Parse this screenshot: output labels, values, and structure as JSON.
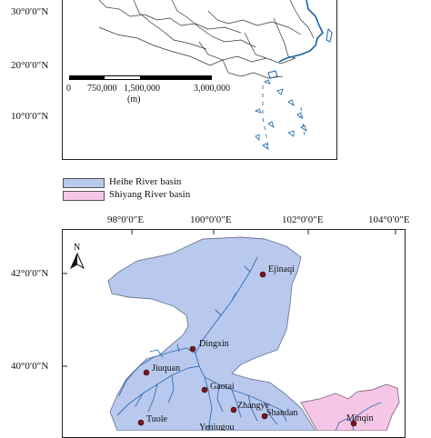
{
  "top_map": {
    "lat_labels": [
      "30°0′0″N",
      "20°0′0″N",
      "10°0′0″N"
    ],
    "scale_bar": {
      "ticks": [
        "0",
        "750,000",
        "1,500,000",
        "3,000,000"
      ],
      "unit": "(m)"
    }
  },
  "legend": {
    "items": [
      {
        "label": "Heihe River basin",
        "color": "#b9c9ee"
      },
      {
        "label": "Shiyang River basin",
        "color": "#f5c6e6"
      }
    ]
  },
  "basin_map": {
    "lon_labels": [
      "98°0′0″E",
      "100°0′0″E",
      "102°0′0″E",
      "104°0′0″E"
    ],
    "lat_labels": [
      "42°0′0″N",
      "40°0′0″N"
    ],
    "north_label": "N",
    "cities": [
      "Ejinaqi",
      "Dingxin",
      "Jiuquan",
      "Gaotai",
      "Zhangye",
      "Shandan",
      "Tuole",
      "Yeniugou",
      "Minqin"
    ]
  },
  "colors": {
    "heihe_fill": "#b9c9ee",
    "shiyang_fill": "#f5c6e6",
    "river": "#2f6fb2",
    "coast": "#1a62a8",
    "city_dot": "#7a1520"
  }
}
